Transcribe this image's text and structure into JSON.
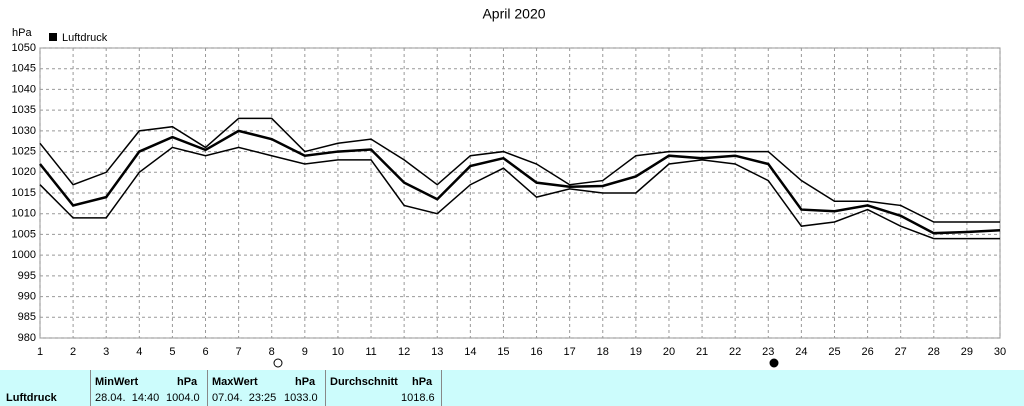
{
  "chart_data": {
    "type": "line",
    "title": "April 2020",
    "y_label": "hPa",
    "x": [
      1,
      2,
      3,
      4,
      5,
      6,
      7,
      8,
      9,
      10,
      11,
      12,
      13,
      14,
      15,
      16,
      17,
      18,
      19,
      20,
      21,
      22,
      23,
      24,
      25,
      26,
      27,
      28,
      29,
      30
    ],
    "xlim": [
      1,
      30
    ],
    "xticks": [
      1,
      2,
      3,
      4,
      5,
      6,
      7,
      8,
      9,
      10,
      11,
      12,
      13,
      14,
      15,
      16,
      17,
      18,
      19,
      20,
      21,
      22,
      23,
      24,
      25,
      26,
      27,
      28,
      29,
      30
    ],
    "ylim": [
      980,
      1050
    ],
    "yticks": [
      980,
      985,
      990,
      995,
      1000,
      1005,
      1010,
      1015,
      1020,
      1025,
      1030,
      1035,
      1040,
      1045,
      1050
    ],
    "grid": true,
    "legend": "top-left",
    "series": [
      {
        "name": "Luftdruck",
        "color": "#000000",
        "values": [
          1022,
          1012,
          1014,
          1025,
          1028.5,
          1025.4,
          1030,
          1028,
          1024,
          1025,
          1025.5,
          1017.5,
          1013.5,
          1021.5,
          1023.4,
          1017.5,
          1016.5,
          1016.7,
          1019,
          1024,
          1023.4,
          1024,
          1022,
          1011,
          1010.6,
          1012,
          1009.5,
          1005.3,
          1005.6,
          1006
        ]
      },
      {
        "color": "#000000",
        "values": [
          1027,
          1017,
          1020,
          1030,
          1031,
          1026,
          1033,
          1033,
          1025,
          1027,
          1028,
          1023,
          1017,
          1024,
          1025,
          1022,
          1017,
          1018,
          1024,
          1025,
          1025,
          1025,
          1025,
          1018,
          1013,
          1013,
          1012,
          1008,
          1008,
          1008
        ]
      },
      {
        "color": "#000000",
        "values": [
          1017,
          1009,
          1009,
          1020,
          1026,
          1024,
          1026,
          1024,
          1022,
          1023,
          1023,
          1012,
          1010,
          1017,
          1021,
          1014,
          1016,
          1015,
          1015,
          1022,
          1023,
          1022,
          1018,
          1007,
          1008,
          1011,
          1007,
          1004,
          1004,
          1004
        ]
      }
    ]
  },
  "stats": {
    "row_label": "Luftdruck",
    "min": {
      "label": "MinWert",
      "unit": "hPa",
      "time": "28.04.  14:40",
      "value": "1004.0"
    },
    "max": {
      "label": "MaxWert",
      "unit": "hPa",
      "time": "07.04.  23:25",
      "value": "1033.0"
    },
    "avg": {
      "label": "Durchschnitt",
      "unit": "hPa",
      "value": "1018.6"
    }
  }
}
